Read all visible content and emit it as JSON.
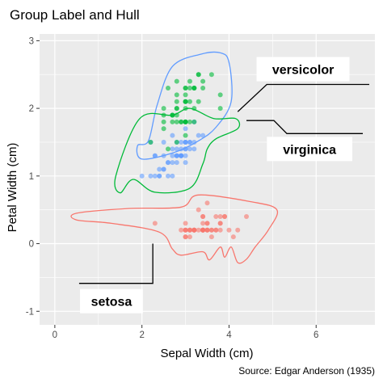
{
  "chart_data": {
    "type": "scatter",
    "title": "Group Label and Hull",
    "xlabel": "Sepal Width (cm)",
    "ylabel": "Petal Width (cm)",
    "caption": "Source: Edgar Anderson (1935)",
    "xlim": [
      -0.35,
      7.35
    ],
    "ylim": [
      -1.2,
      3.1
    ],
    "x_ticks": [
      0,
      2,
      4,
      6
    ],
    "y_ticks": [
      -1,
      0,
      1,
      2,
      3
    ],
    "grid": true,
    "colors": {
      "setosa": "#F8766D",
      "versicolor": "#619CFF",
      "virginica": "#00BA38",
      "panel": "#EBEBEB",
      "gridline": "#FFFFFF"
    },
    "series": [
      {
        "name": "setosa",
        "color": "#F8766D",
        "label_position": [
          1.3,
          -0.85
        ],
        "label_anchor": [
          2.25,
          0.0
        ],
        "x": [
          3.5,
          3.0,
          3.2,
          3.1,
          3.6,
          3.9,
          3.4,
          3.4,
          2.9,
          3.1,
          3.7,
          3.4,
          3.0,
          3.0,
          4.0,
          4.4,
          3.9,
          3.5,
          3.8,
          3.8,
          3.4,
          3.7,
          3.6,
          3.3,
          3.4,
          3.0,
          3.4,
          3.5,
          3.4,
          3.2,
          3.1,
          3.4,
          4.1,
          4.2,
          3.1,
          3.2,
          3.5,
          3.6,
          3.0,
          3.4,
          3.5,
          2.3,
          3.2,
          3.5,
          3.8,
          3.0,
          3.8,
          3.2,
          3.7,
          3.3
        ],
        "y": [
          0.2,
          0.2,
          0.2,
          0.2,
          0.2,
          0.4,
          0.3,
          0.2,
          0.2,
          0.1,
          0.2,
          0.2,
          0.1,
          0.1,
          0.2,
          0.4,
          0.4,
          0.3,
          0.3,
          0.3,
          0.2,
          0.4,
          0.2,
          0.5,
          0.2,
          0.2,
          0.4,
          0.2,
          0.2,
          0.2,
          0.2,
          0.4,
          0.1,
          0.2,
          0.2,
          0.2,
          0.2,
          0.1,
          0.2,
          0.2,
          0.3,
          0.3,
          0.2,
          0.6,
          0.4,
          0.3,
          0.2,
          0.2,
          0.2,
          0.2
        ]
      },
      {
        "name": "versicolor",
        "color": "#619CFF",
        "label_position": [
          5.7,
          2.58
        ],
        "label_anchor": [
          4.2,
          1.95
        ],
        "x": [
          3.2,
          3.2,
          3.1,
          2.3,
          2.8,
          2.8,
          3.3,
          2.4,
          2.9,
          2.7,
          2.0,
          3.0,
          2.2,
          2.9,
          2.9,
          3.1,
          3.0,
          2.7,
          2.2,
          2.5,
          3.2,
          2.8,
          2.5,
          2.8,
          2.9,
          3.0,
          2.8,
          3.0,
          2.9,
          2.6,
          2.4,
          2.4,
          2.7,
          2.7,
          3.0,
          3.4,
          3.1,
          2.3,
          3.0,
          2.5,
          2.6,
          3.0,
          2.6,
          2.3,
          2.7,
          3.0,
          2.9,
          2.9,
          2.5,
          2.8
        ],
        "y": [
          1.4,
          1.5,
          1.5,
          1.3,
          1.5,
          1.3,
          1.6,
          1.0,
          1.3,
          1.4,
          1.0,
          1.5,
          1.0,
          1.4,
          1.3,
          1.4,
          1.5,
          1.0,
          1.5,
          1.1,
          1.8,
          1.3,
          1.5,
          1.2,
          1.3,
          1.4,
          1.4,
          1.7,
          1.5,
          1.0,
          1.1,
          1.0,
          1.2,
          1.6,
          1.5,
          1.6,
          1.5,
          1.3,
          1.3,
          1.3,
          1.2,
          1.4,
          1.2,
          1.0,
          1.3,
          1.2,
          1.3,
          1.3,
          1.1,
          1.3
        ]
      },
      {
        "name": "virginica",
        "color": "#00BA38",
        "label_position": [
          5.85,
          1.4
        ],
        "label_anchor": [
          4.4,
          1.82
        ],
        "x": [
          3.3,
          2.7,
          3.0,
          2.9,
          3.0,
          3.0,
          2.5,
          2.9,
          2.5,
          3.6,
          3.2,
          2.7,
          3.0,
          2.5,
          2.8,
          3.2,
          3.0,
          3.8,
          2.6,
          2.2,
          3.2,
          2.8,
          2.8,
          2.7,
          3.3,
          3.2,
          2.8,
          3.0,
          2.8,
          3.0,
          2.8,
          3.8,
          2.8,
          2.8,
          2.6,
          3.0,
          3.4,
          3.1,
          3.0,
          3.1,
          3.1,
          3.1,
          2.7,
          3.2,
          3.3,
          3.0,
          2.5,
          3.0,
          3.4,
          3.0
        ],
        "y": [
          2.5,
          1.9,
          2.1,
          1.8,
          2.2,
          2.1,
          1.7,
          1.8,
          1.8,
          2.5,
          2.0,
          1.9,
          2.1,
          2.0,
          2.4,
          2.3,
          1.8,
          2.2,
          2.3,
          1.5,
          2.3,
          2.0,
          2.0,
          1.8,
          2.1,
          1.8,
          1.8,
          1.8,
          2.1,
          1.6,
          1.9,
          2.0,
          2.2,
          1.5,
          1.4,
          2.3,
          2.4,
          1.8,
          1.8,
          2.1,
          2.4,
          2.3,
          1.9,
          2.3,
          2.5,
          2.3,
          1.9,
          2.0,
          2.3,
          1.8
        ]
      }
    ]
  }
}
